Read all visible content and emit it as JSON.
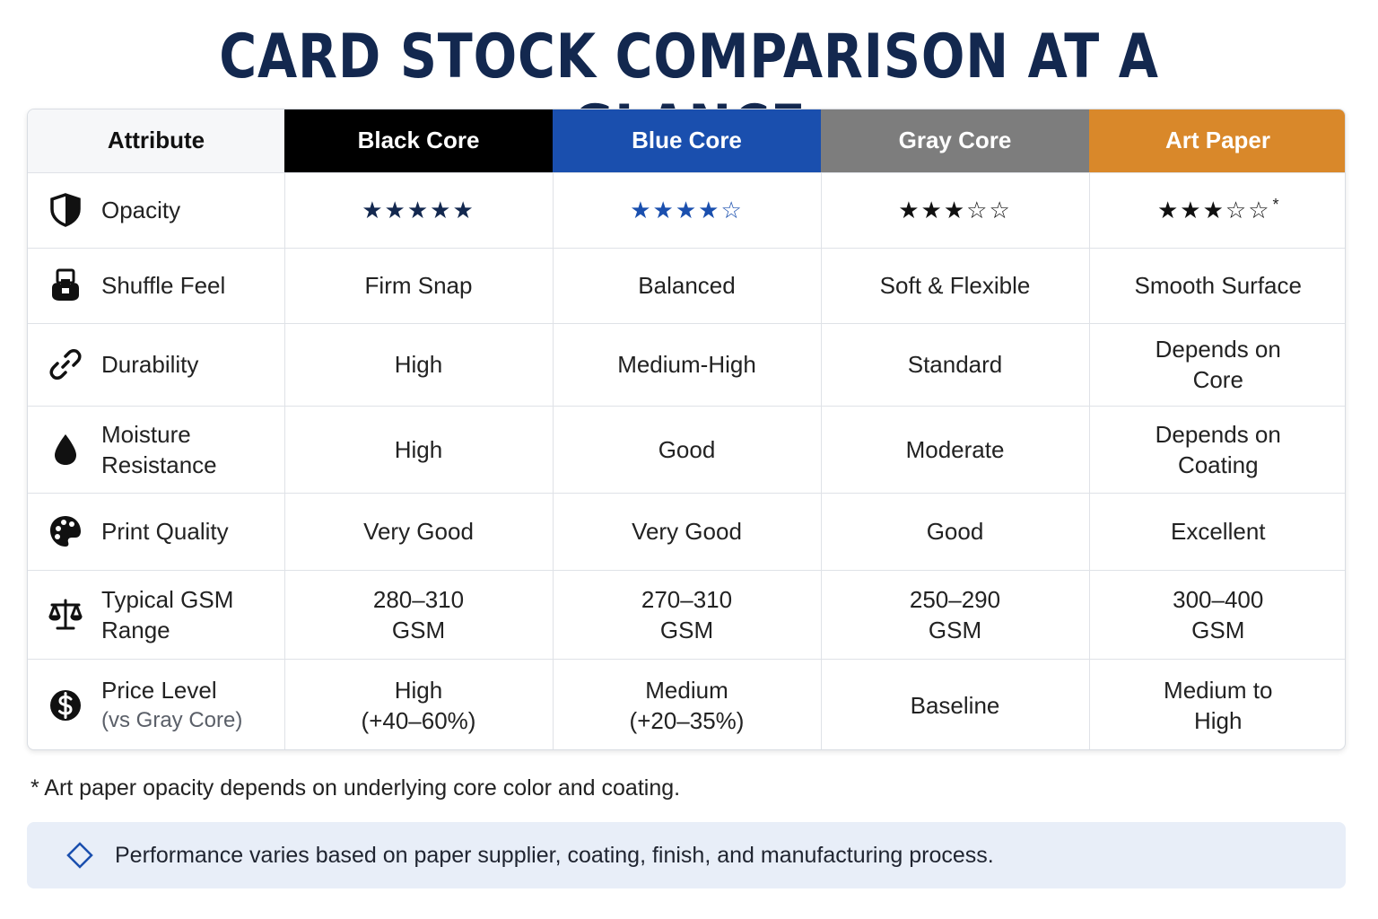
{
  "title": "CARD STOCK COMPARISON AT A GLANCE",
  "headers": {
    "attribute": "Attribute",
    "black": "Black Core",
    "blue": "Blue Core",
    "gray": "Gray Core",
    "art": "Art Paper"
  },
  "rows": {
    "opacity": {
      "label": "Opacity",
      "icon": "shield-icon",
      "black": "★★★★★",
      "blue": "★★★★☆",
      "gray": "★★★☆☆",
      "art": "★★★☆☆",
      "art_mark": "*",
      "ratings": {
        "black": 5,
        "blue": 4,
        "gray": 3,
        "art": 3,
        "max": 5
      }
    },
    "shuffle": {
      "label": "Shuffle Feel",
      "icon": "hand-cards-icon",
      "black": "Firm Snap",
      "blue": "Balanced",
      "gray": "Soft & Flexible",
      "art": "Smooth Surface"
    },
    "durability": {
      "label": "Durability",
      "icon": "link-icon",
      "black": "High",
      "blue": "Medium-High",
      "gray": "Standard",
      "art_line1": "Depends on",
      "art_line2": "Core"
    },
    "moisture": {
      "label_line1": "Moisture",
      "label_line2": "Resistance",
      "icon": "water-drop-icon",
      "black": "High",
      "blue": "Good",
      "gray": "Moderate",
      "art_line1": "Depends on",
      "art_line2": "Coating"
    },
    "print": {
      "label": "Print Quality",
      "icon": "palette-icon",
      "black": "Very Good",
      "blue": "Very Good",
      "gray": "Good",
      "art": "Excellent"
    },
    "gsm": {
      "label_line1": "Typical GSM",
      "label_line2": "Range",
      "icon": "scale-icon",
      "black_line1": "280–310",
      "black_line2": "GSM",
      "blue_line1": "270–310",
      "blue_line2": "GSM",
      "gray_line1": "250–290",
      "gray_line2": "GSM",
      "art_line1": "300–400",
      "art_line2": "GSM"
    },
    "price": {
      "label_line1": "Price Level",
      "label_sub": "(vs Gray Core)",
      "icon": "dollar-icon",
      "black_line1": "High",
      "black_line2": "(+40–60%)",
      "blue_line1": "Medium",
      "blue_line2": "(+20–35%)",
      "gray": "Baseline",
      "art_line1": "Medium to",
      "art_line2": "High"
    }
  },
  "footnote": "* Art paper opacity depends on underlying core color and coating.",
  "banner": {
    "icon": "diamond-icon",
    "text": "Performance varies based on paper supplier, coating, finish, and manufacturing process."
  },
  "colors": {
    "title": "#13284f",
    "black_header": "#000000",
    "blue_header": "#1a4fae",
    "gray_header": "#7d7d7d",
    "art_header": "#d9882a",
    "banner_bg": "#e8eef8"
  }
}
